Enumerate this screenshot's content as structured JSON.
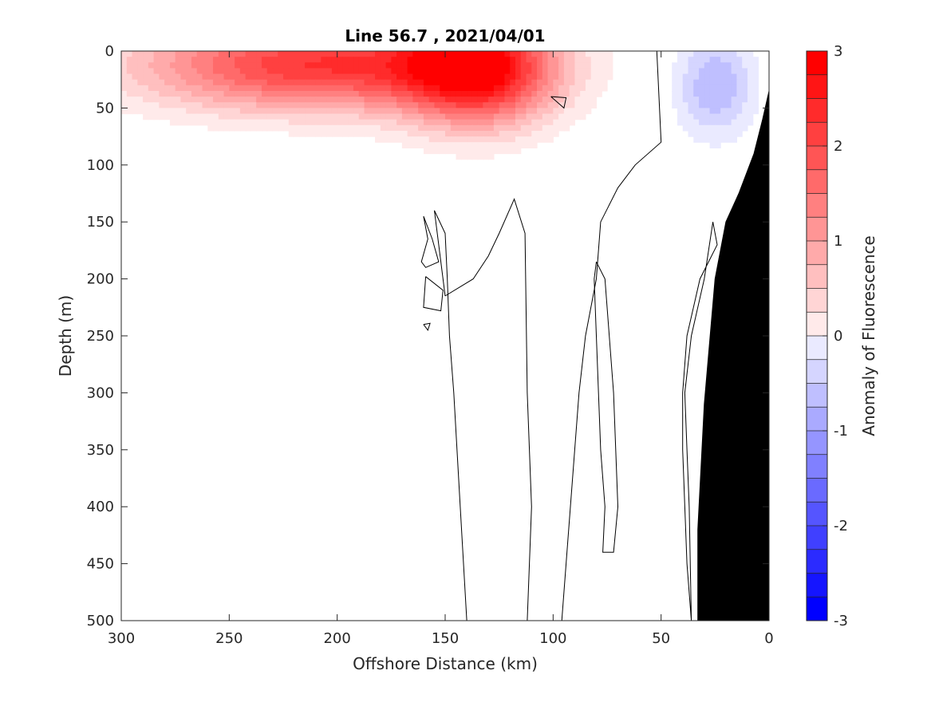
{
  "chart_data": {
    "type": "heatmap",
    "title": "Line 56.7 , 2021/04/01",
    "xlabel": "Offshore Distance (km)",
    "ylabel": "Depth (m)",
    "colorbar_label": "Anomaly of Fluorescence",
    "xlim": [
      300,
      0
    ],
    "ylim": [
      500,
      0
    ],
    "x_direction": "reversed",
    "y_direction": "reversed (depth increases downward)",
    "xticks": [
      300,
      250,
      200,
      150,
      100,
      50,
      0
    ],
    "yticks": [
      0,
      50,
      100,
      150,
      200,
      250,
      300,
      350,
      400,
      450,
      500
    ],
    "xtick_labels": [
      "300",
      "250",
      "200",
      "150",
      "100",
      "50",
      "0"
    ],
    "ytick_labels": [
      "0",
      "50",
      "100",
      "150",
      "200",
      "250",
      "300",
      "350",
      "400",
      "450",
      "500"
    ],
    "colorbar": {
      "range": [
        -3,
        3
      ],
      "step": 0.25,
      "ticks": [
        3,
        2,
        1,
        0,
        -1,
        -2,
        -3
      ],
      "tick_labels": [
        "3",
        "2",
        "1",
        "0",
        "-1",
        "-2",
        "-3"
      ],
      "positive_color": "#ff0000",
      "negative_color": "#0000ff",
      "zero_color": "#ffffff"
    },
    "anomaly_patches": [
      {
        "name": "surface-high-west",
        "x_center": 210,
        "depth_center": 12,
        "x_half_width": 80,
        "depth_half_width": 40,
        "peak": 2.5
      },
      {
        "name": "surface-high-center",
        "x_center": 135,
        "depth_center": 15,
        "x_half_width": 35,
        "depth_half_width": 50,
        "peak": 2.75
      },
      {
        "name": "surface-low-east",
        "x_center": 25,
        "depth_center": 30,
        "x_half_width": 18,
        "depth_half_width": 45,
        "peak": -1.0
      }
    ],
    "zero_contours": [
      [
        [
          160,
          145
        ],
        [
          156,
          165
        ],
        [
          153,
          185
        ],
        [
          159,
          190
        ],
        [
          161,
          185
        ],
        [
          158,
          165
        ],
        [
          160,
          145
        ]
      ],
      [
        [
          159,
          198
        ],
        [
          160,
          225
        ],
        [
          152,
          228
        ],
        [
          151,
          210
        ],
        [
          159,
          198
        ]
      ],
      [
        [
          150,
          215
        ],
        [
          137,
          200
        ],
        [
          130,
          180
        ],
        [
          125,
          160
        ],
        [
          118,
          130
        ],
        [
          113,
          160
        ],
        [
          112,
          300
        ],
        [
          110,
          400
        ],
        [
          112,
          500
        ]
      ],
      [
        [
          140,
          500
        ],
        [
          143,
          400
        ],
        [
          146,
          300
        ],
        [
          148,
          250
        ],
        [
          149,
          200
        ],
        [
          150,
          160
        ],
        [
          155,
          140
        ],
        [
          150,
          215
        ]
      ],
      [
        [
          80,
          185
        ],
        [
          76,
          200
        ],
        [
          74,
          250
        ],
        [
          72,
          300
        ],
        [
          71,
          350
        ],
        [
          70,
          400
        ],
        [
          72,
          440
        ],
        [
          77,
          440
        ],
        [
          76,
          400
        ],
        [
          78,
          350
        ],
        [
          79,
          300
        ],
        [
          80,
          250
        ],
        [
          81,
          200
        ],
        [
          80,
          185
        ]
      ],
      [
        [
          52,
          0
        ],
        [
          51,
          40
        ],
        [
          50,
          80
        ],
        [
          62,
          100
        ],
        [
          70,
          120
        ],
        [
          78,
          150
        ],
        [
          80,
          200
        ],
        [
          85,
          250
        ],
        [
          88,
          300
        ],
        [
          90,
          350
        ],
        [
          92,
          400
        ],
        [
          94,
          450
        ],
        [
          96,
          500
        ]
      ],
      [
        [
          36,
          500
        ],
        [
          38,
          450
        ],
        [
          39,
          400
        ],
        [
          40,
          350
        ],
        [
          40,
          300
        ],
        [
          38,
          250
        ],
        [
          32,
          200
        ],
        [
          24,
          170
        ],
        [
          26,
          150
        ],
        [
          30,
          200
        ],
        [
          36,
          250
        ],
        [
          39,
          300
        ],
        [
          38,
          350
        ],
        [
          37,
          400
        ],
        [
          36,
          500
        ]
      ],
      [
        [
          101,
          40
        ],
        [
          95,
          50
        ],
        [
          94,
          41
        ],
        [
          101,
          40
        ]
      ],
      [
        [
          160,
          240
        ],
        [
          158,
          245
        ],
        [
          157,
          239
        ],
        [
          160,
          240
        ]
      ]
    ],
    "bathymetry_polygon": [
      [
        0,
        35
      ],
      [
        3,
        60
      ],
      [
        7,
        90
      ],
      [
        14,
        125
      ],
      [
        20,
        150
      ],
      [
        25,
        200
      ],
      [
        30,
        310
      ],
      [
        33,
        420
      ],
      [
        33,
        500
      ],
      [
        0,
        500
      ]
    ]
  }
}
